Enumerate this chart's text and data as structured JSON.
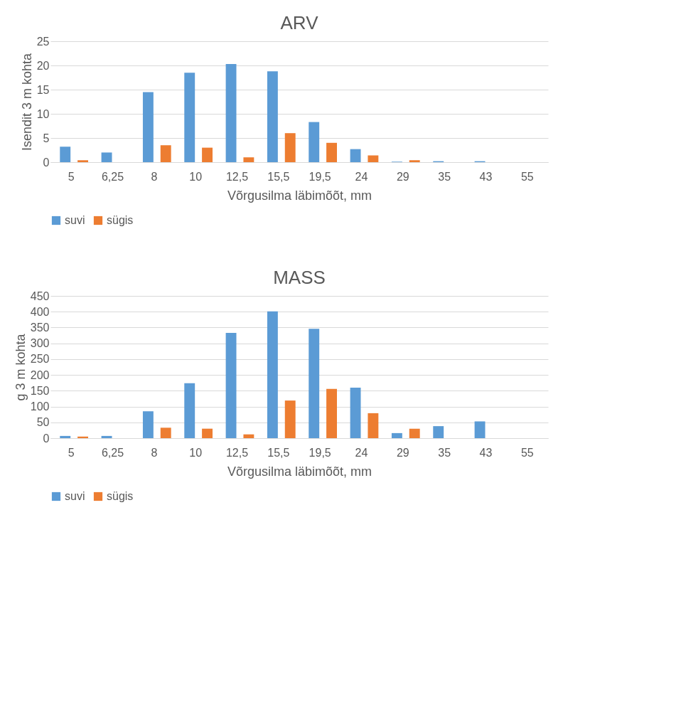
{
  "chart_data": [
    {
      "type": "bar",
      "title": "ARV",
      "xlabel": "Võrgusilma läbimõõt, mm",
      "ylabel": "Isendit 3 m kohta",
      "categories": [
        "5",
        "6,25",
        "8",
        "10",
        "12,5",
        "15,5",
        "19,5",
        "24",
        "29",
        "35",
        "43",
        "55"
      ],
      "series": [
        {
          "name": "suvi",
          "color": "#5b9bd5",
          "values": [
            3.2,
            2.0,
            14.5,
            18.5,
            20.3,
            18.8,
            8.3,
            2.7,
            0.1,
            0.2,
            0.2,
            0
          ]
        },
        {
          "name": "sügis",
          "color": "#ed7d31",
          "values": [
            0.4,
            0,
            3.5,
            3.0,
            1.0,
            6.0,
            4.0,
            1.4,
            0.4,
            0,
            0,
            0
          ]
        }
      ],
      "ylim": [
        0,
        25
      ],
      "yticks": [
        0,
        5,
        10,
        15,
        20,
        25
      ],
      "grid": "y",
      "legend": "bottom"
    },
    {
      "type": "bar",
      "title": "MASS",
      "xlabel": "Võrgusilma läbimõõt, mm",
      "ylabel": "g 3 m kohta",
      "categories": [
        "5",
        "6,25",
        "8",
        "10",
        "12,5",
        "15,5",
        "19,5",
        "24",
        "29",
        "35",
        "43",
        "55"
      ],
      "series": [
        {
          "name": "suvi",
          "color": "#5b9bd5",
          "values": [
            7,
            7,
            85,
            174,
            333,
            401,
            346,
            160,
            16,
            38,
            53,
            0
          ]
        },
        {
          "name": "sügis",
          "color": "#ed7d31",
          "values": [
            5,
            0,
            33,
            30,
            12,
            119,
            156,
            79,
            30,
            0,
            0,
            0
          ]
        }
      ],
      "ylim": [
        0,
        450
      ],
      "yticks": [
        0,
        50,
        100,
        150,
        200,
        250,
        300,
        350,
        400,
        450
      ],
      "grid": "y",
      "legend": "bottom"
    }
  ]
}
